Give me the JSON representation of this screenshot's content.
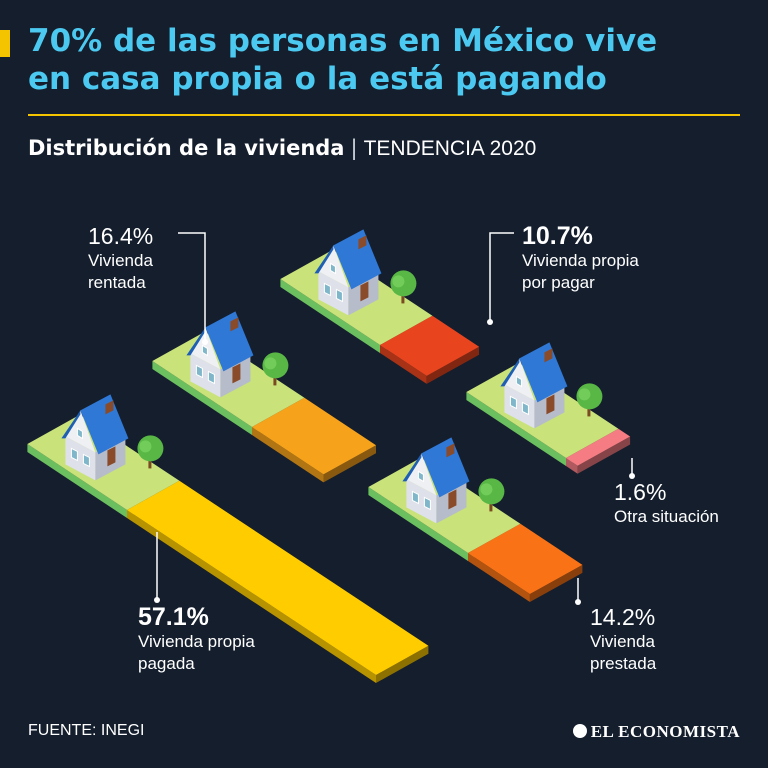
{
  "header": {
    "title_line1": "70% de las personas en México vive",
    "title_line2": "en casa propia o la está pagando",
    "subtitle": "Distribución de la vivienda",
    "separator": "|",
    "subtitle_tag": "TENDENCIA 2020"
  },
  "chart_data": {
    "type": "bar",
    "title": "Distribución de la vivienda",
    "unit": "%",
    "categories": [
      "Vivienda propia pagada",
      "Vivienda rentada",
      "Vivienda propia por pagar",
      "Otra situación",
      "Vivienda prestada"
    ],
    "values": [
      57.1,
      16.4,
      10.7,
      1.6,
      14.2
    ],
    "series": [
      {
        "key": "pagada",
        "value_label": "57.1%",
        "line1": "Vivienda propia",
        "line2": "pagada",
        "color": "#ffcc00"
      },
      {
        "key": "rentada",
        "value_label": "16.4%",
        "line1": "Vivienda",
        "line2": "rentada",
        "color": "#f7a21b"
      },
      {
        "key": "por_pagar",
        "value_label": "10.7%",
        "line1": "Vivienda propia",
        "line2": "por pagar",
        "color": "#e8451e"
      },
      {
        "key": "otra",
        "value_label": "1.6%",
        "line1": "Otra situación",
        "line2": "",
        "color": "#f47c82"
      },
      {
        "key": "prestada",
        "value_label": "14.2%",
        "line1": "Vivienda",
        "line2": "prestada",
        "color": "#f97316"
      }
    ]
  },
  "footer": {
    "source": "FUENTE: INEGI",
    "brand": "EL ECONOMISTA"
  },
  "colors": {
    "background": "#141e2d",
    "title": "#4cc9f0",
    "accent": "#f5c400",
    "grass_top": "#c9e27a",
    "grass_side": "#6cbf5f",
    "roof": "#2f78d6",
    "wall": "#dfe1ea"
  }
}
